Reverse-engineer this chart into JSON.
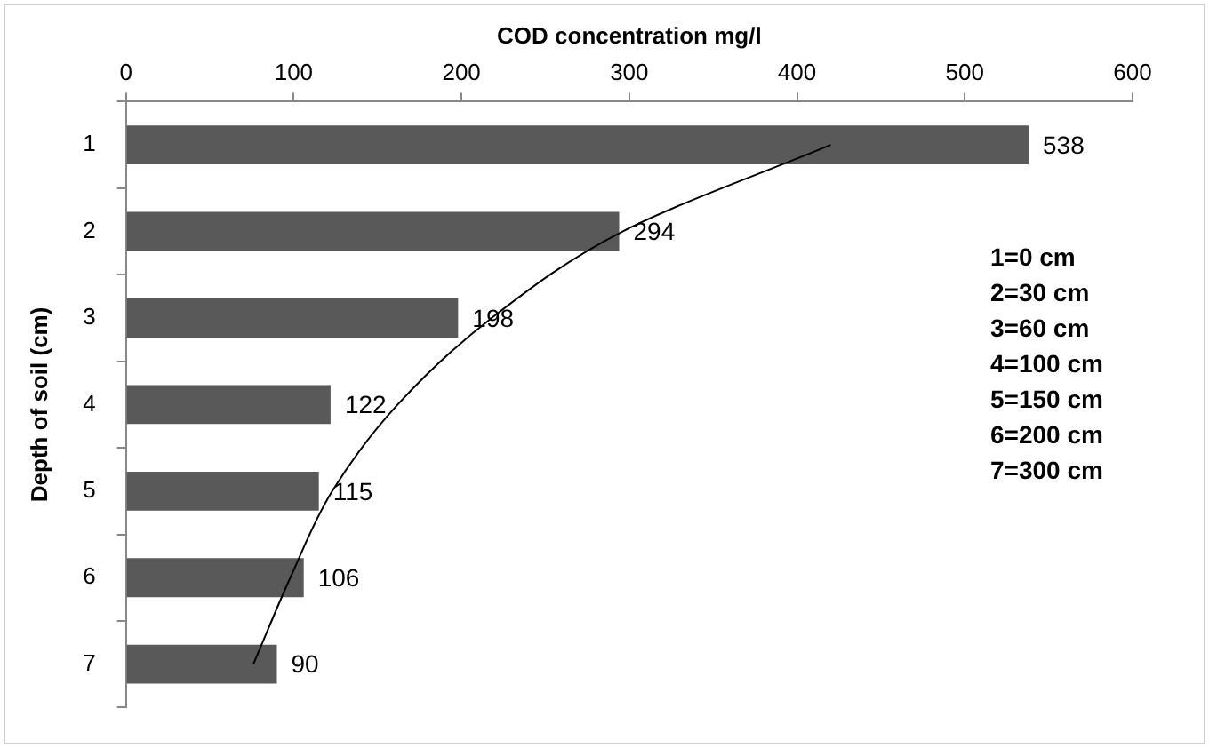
{
  "chart_data": {
    "type": "bar",
    "orientation": "horizontal",
    "xlabel": "COD concentration mg/l",
    "ylabel": "Depth of soil (cm)",
    "categories": [
      "1",
      "2",
      "3",
      "4",
      "5",
      "6",
      "7"
    ],
    "series": [
      {
        "type": "bar",
        "color": "#595959",
        "values": [
          538,
          294,
          198,
          122,
          115,
          106,
          90
        ],
        "value_labels": [
          "538",
          "294",
          "198",
          "122",
          "115",
          "106",
          "90"
        ]
      },
      {
        "type": "line",
        "color": "#000000",
        "marker": "none",
        "values": [
          420,
          296,
          218,
          162,
          123,
          98,
          76
        ]
      }
    ],
    "xlim": [
      0,
      600
    ],
    "xticks": [
      0,
      100,
      200,
      300,
      400,
      500,
      600
    ],
    "grid": false,
    "legend": false,
    "annotations": [
      "1=0 cm",
      "2=30 cm",
      "3=60 cm",
      "4=100 cm",
      "5=150 cm",
      "6=200 cm",
      "7=300 cm"
    ]
  }
}
